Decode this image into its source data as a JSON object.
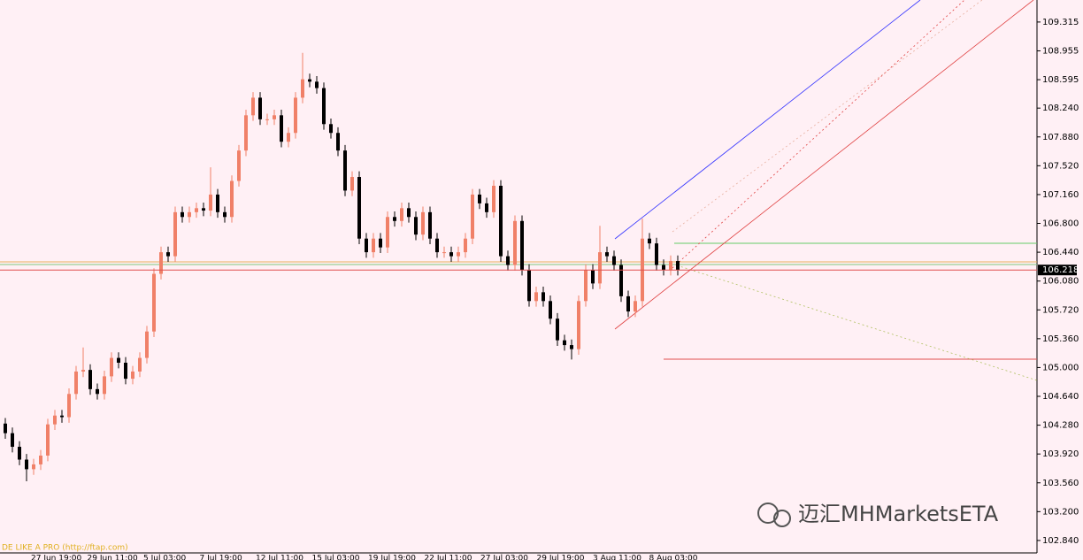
{
  "chart_data": {
    "type": "candlestick",
    "open": [
      104.3,
      104.18,
      104.01,
      103.85,
      103.73,
      103.79,
      103.9,
      104.29,
      104.4,
      104.38,
      104.67,
      104.95,
      104.97,
      104.73,
      104.67,
      104.89,
      105.12,
      105.06,
      104.86,
      104.95,
      105.12,
      105.45,
      106.17,
      106.44,
      106.39,
      106.94,
      106.88,
      106.94,
      106.99,
      106.96,
      107.16,
      106.94,
      106.88,
      107.33,
      107.71,
      108.15,
      108.37,
      108.1,
      108.1,
      108.15,
      107.82,
      107.93,
      108.37,
      108.6,
      108.57,
      108.49,
      108.04,
      107.93,
      107.71,
      107.21,
      107.38,
      106.61,
      106.44,
      106.61,
      106.5,
      106.88,
      106.83,
      106.99,
      106.88,
      106.66,
      106.94,
      106.61,
      106.44,
      106.44,
      106.39,
      106.44,
      106.61,
      107.16,
      107.05,
      106.94,
      107.27,
      106.39,
      106.28,
      106.83,
      106.22,
      105.83,
      105.94,
      105.83,
      105.61,
      105.34,
      105.28,
      105.23,
      105.83,
      106.22,
      106.05,
      106.44,
      106.39,
      106.28,
      105.89,
      105.7,
      105.83,
      106.61,
      106.55,
      106.28,
      106.22,
      106.33
    ],
    "high": [
      104.37,
      104.25,
      104.08,
      103.92,
      103.86,
      103.97,
      104.36,
      104.47,
      104.47,
      104.74,
      105.02,
      105.25,
      105.04,
      104.8,
      104.96,
      105.19,
      105.19,
      105.13,
      105.02,
      105.19,
      105.52,
      106.24,
      106.51,
      106.51,
      107.01,
      107.01,
      107.01,
      107.06,
      107.06,
      107.5,
      107.23,
      107.01,
      107.4,
      107.78,
      108.22,
      108.44,
      108.44,
      108.17,
      108.22,
      108.22,
      108.0,
      108.44,
      108.93,
      108.67,
      108.64,
      108.56,
      108.11,
      108.0,
      107.78,
      107.45,
      107.45,
      106.68,
      106.68,
      106.68,
      106.95,
      106.95,
      107.06,
      107.06,
      106.95,
      107.01,
      107.01,
      106.68,
      106.51,
      106.51,
      106.51,
      106.68,
      107.23,
      107.23,
      107.12,
      107.34,
      107.34,
      106.46,
      106.9,
      106.9,
      106.29,
      106.01,
      106.01,
      105.9,
      105.68,
      105.41,
      105.35,
      105.9,
      106.29,
      106.29,
      106.77,
      106.51,
      106.46,
      106.35,
      105.96,
      105.9,
      106.86,
      106.68,
      106.62,
      106.35,
      106.4,
      106.4
    ],
    "low": [
      104.11,
      103.94,
      103.78,
      103.58,
      103.66,
      103.72,
      103.83,
      104.22,
      104.31,
      104.31,
      104.6,
      104.88,
      104.66,
      104.6,
      104.6,
      104.82,
      104.99,
      104.79,
      104.79,
      104.88,
      105.05,
      105.38,
      106.1,
      106.32,
      106.32,
      106.81,
      106.81,
      106.87,
      106.89,
      106.89,
      106.87,
      106.81,
      106.81,
      107.26,
      107.64,
      108.08,
      108.03,
      108.03,
      108.03,
      107.75,
      107.75,
      107.86,
      108.3,
      108.5,
      108.42,
      107.97,
      107.86,
      107.64,
      107.14,
      107.14,
      106.54,
      106.37,
      106.37,
      106.43,
      106.43,
      106.76,
      106.76,
      106.81,
      106.59,
      106.59,
      106.54,
      106.37,
      106.37,
      106.32,
      106.32,
      106.37,
      106.54,
      106.98,
      106.87,
      106.87,
      106.32,
      106.21,
      106.21,
      106.15,
      105.76,
      105.76,
      105.76,
      105.54,
      105.27,
      105.21,
      105.1,
      105.16,
      105.76,
      105.98,
      105.98,
      106.32,
      106.21,
      105.82,
      105.63,
      105.63,
      105.76,
      106.48,
      106.21,
      106.15,
      106.15,
      106.15
    ],
    "close": [
      104.18,
      104.01,
      103.85,
      103.73,
      103.79,
      103.9,
      104.29,
      104.4,
      104.38,
      104.67,
      104.95,
      104.97,
      104.73,
      104.67,
      104.89,
      105.12,
      105.06,
      104.86,
      104.95,
      105.12,
      105.45,
      106.17,
      106.44,
      106.39,
      106.94,
      106.88,
      106.94,
      106.99,
      106.96,
      107.16,
      106.94,
      106.88,
      107.33,
      107.71,
      108.15,
      108.37,
      108.1,
      108.1,
      108.15,
      107.82,
      107.93,
      108.37,
      108.6,
      108.57,
      108.49,
      108.04,
      107.93,
      107.71,
      107.21,
      107.38,
      106.61,
      106.44,
      106.61,
      106.5,
      106.88,
      106.83,
      106.99,
      106.88,
      106.66,
      106.94,
      106.61,
      106.44,
      106.44,
      106.39,
      106.44,
      106.61,
      107.16,
      107.05,
      106.94,
      107.27,
      106.39,
      106.28,
      106.83,
      106.22,
      105.83,
      105.94,
      105.83,
      105.61,
      105.34,
      105.28,
      105.23,
      105.83,
      106.22,
      106.05,
      106.44,
      106.39,
      106.28,
      105.89,
      105.7,
      105.83,
      106.61,
      106.55,
      106.28,
      106.22,
      106.33,
      106.22
    ],
    "up_color": "#f08068",
    "down_color": "#000000",
    "ylim": [
      102.69,
      109.59
    ],
    "yticks": [
      109.315,
      108.955,
      108.595,
      {
        "value": 108.24,
        "label": "108.240"
      },
      {
        "value": 107.88,
        "label": "107.880"
      },
      {
        "value": 107.52,
        "label": "107.520"
      },
      {
        "value": 107.16,
        "label": "107.160"
      },
      {
        "value": 106.8,
        "label": "106.800"
      },
      {
        "value": 106.44,
        "label": "106.440"
      },
      {
        "value": 106.08,
        "label": "106.080"
      },
      {
        "value": 105.72,
        "label": "105.720"
      },
      {
        "value": 105.36,
        "label": "105.360"
      },
      {
        "value": 105,
        "label": "105.000"
      },
      {
        "value": 104.64,
        "label": "104.640"
      },
      {
        "value": 104.28,
        "label": "104.280"
      },
      {
        "value": 103.92,
        "label": "103.920"
      },
      {
        "value": 103.56,
        "label": "103.560"
      },
      {
        "value": 103.2,
        "label": "103.200"
      },
      {
        "value": 102.84,
        "label": "102.840"
      }
    ],
    "current_price": 106.218,
    "x_tick_labels": [
      "27 Jun 19:00",
      "29 Jun 11:00",
      "5 Jul 03:00",
      "7 Jul 19:00",
      "12 Jul 11:00",
      "15 Jul 03:00",
      "19 Jul 19:00",
      "22 Jul 11:00",
      "27 Jul 03:00",
      "29 Jul 19:00",
      "3 Aug 11:00",
      "8 Aug 03:00"
    ],
    "watermark": "DE LIKE A PRO (http://ftap.com)",
    "logo": "迈汇MHMarketsETA"
  }
}
